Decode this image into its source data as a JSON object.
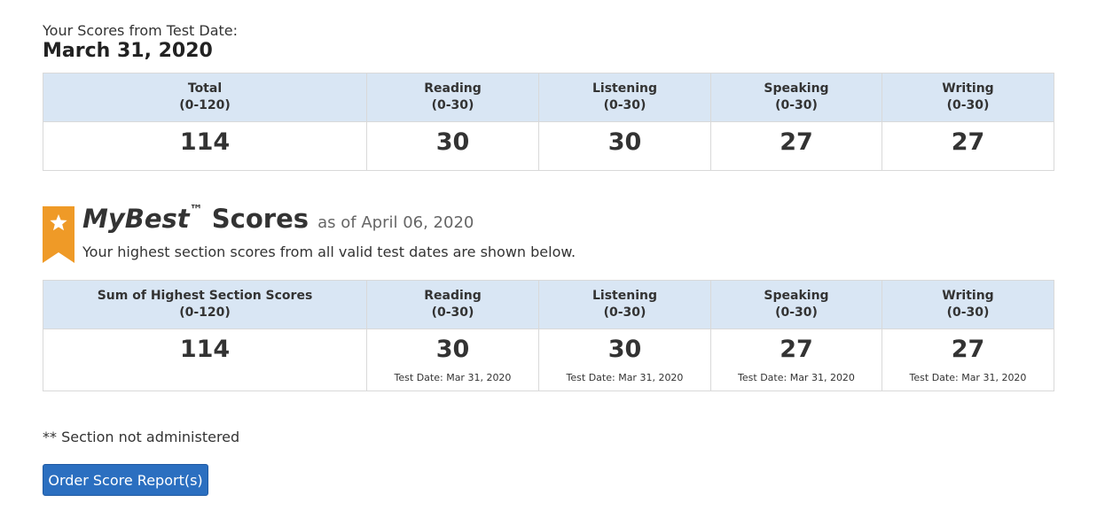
{
  "intro": {
    "label": "Your Scores from Test Date:",
    "date": "March 31, 2020"
  },
  "current": {
    "headers": [
      {
        "title": "Total",
        "range": "(0-120)"
      },
      {
        "title": "Reading",
        "range": "(0-30)"
      },
      {
        "title": "Listening",
        "range": "(0-30)"
      },
      {
        "title": "Speaking",
        "range": "(0-30)"
      },
      {
        "title": "Writing",
        "range": "(0-30)"
      }
    ],
    "values": [
      "114",
      "30",
      "30",
      "27",
      "27"
    ]
  },
  "mybest": {
    "brand": "MyBest",
    "tm": "™",
    "scores_word": "Scores",
    "as_of": "as of April 06, 2020",
    "subtitle": "Your highest section scores from all valid test dates are shown below.",
    "ribbon_color": "#ef9a27",
    "headers": [
      {
        "title": "Sum of Highest Section Scores",
        "range": "(0-120)"
      },
      {
        "title": "Reading",
        "range": "(0-30)"
      },
      {
        "title": "Listening",
        "range": "(0-30)"
      },
      {
        "title": "Speaking",
        "range": "(0-30)"
      },
      {
        "title": "Writing",
        "range": "(0-30)"
      }
    ],
    "values": [
      "114",
      "30",
      "30",
      "27",
      "27"
    ],
    "test_dates": [
      "",
      "Test Date: Mar 31, 2020",
      "Test Date: Mar 31, 2020",
      "Test Date: Mar 31, 2020",
      "Test Date: Mar 31, 2020"
    ]
  },
  "footnote": "** Section not administered",
  "order_button": "Order Score Report(s)",
  "colors": {
    "header_bg": "#d9e6f4",
    "button_bg": "#2b6fc0",
    "border": "#d9d9d9"
  }
}
